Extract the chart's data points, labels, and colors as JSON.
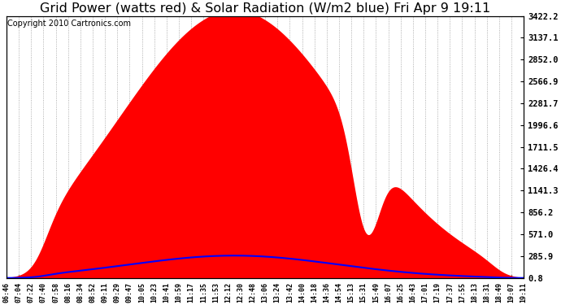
{
  "title": "Grid Power (watts red) & Solar Radiation (W/m2 blue) Fri Apr 9 19:11",
  "copyright_text": "Copyright 2010 Cartronics.com",
  "y_ticks": [
    0.8,
    285.9,
    571.0,
    856.2,
    1141.3,
    1426.4,
    1711.5,
    1996.6,
    2281.7,
    2566.9,
    2852.0,
    3137.1,
    3422.2
  ],
  "x_tick_labels": [
    "06:46",
    "07:04",
    "07:22",
    "07:40",
    "07:58",
    "08:16",
    "08:34",
    "08:52",
    "09:11",
    "09:29",
    "09:47",
    "10:05",
    "10:23",
    "10:41",
    "10:59",
    "11:17",
    "11:35",
    "11:53",
    "12:12",
    "12:30",
    "12:48",
    "13:06",
    "13:24",
    "13:42",
    "14:00",
    "14:18",
    "14:36",
    "14:54",
    "15:13",
    "15:31",
    "15:49",
    "16:07",
    "16:25",
    "16:43",
    "17:01",
    "17:19",
    "17:37",
    "17:55",
    "18:13",
    "18:31",
    "18:49",
    "19:07",
    "19:11"
  ],
  "ylim_min": 0.8,
  "ylim_max": 3422.2,
  "bg_color": "#ffffff",
  "grid_color": "#999999",
  "title_fontsize": 11.5,
  "copyright_fontsize": 7,
  "red_color": "#ff0000",
  "blue_color": "#0000ff",
  "tick_color": "#000000"
}
